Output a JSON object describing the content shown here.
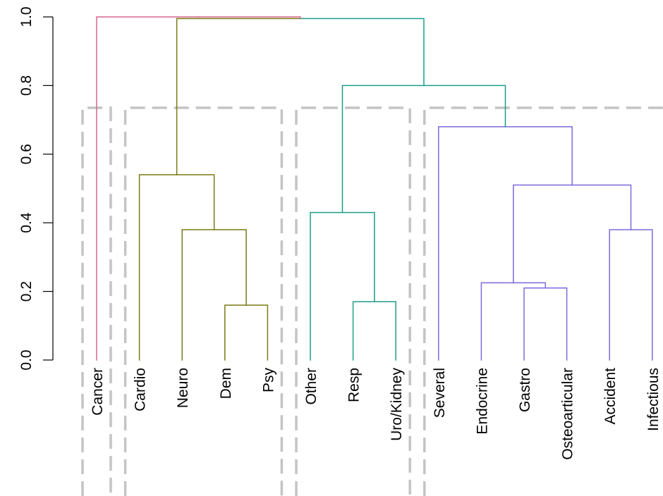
{
  "chart_data": {
    "type": "dendrogram",
    "title": "",
    "xlabel": "",
    "ylabel": "",
    "ylim": [
      0,
      1
    ],
    "yticks": [
      0.0,
      0.2,
      0.4,
      0.6,
      0.8,
      1.0
    ],
    "ytick_labels": [
      "0.0",
      "0.2",
      "0.4",
      "0.6",
      "0.8",
      "1.0"
    ],
    "leaves": [
      "Cancer",
      "Cardio",
      "Neuro",
      "Dem",
      "Psy",
      "Other",
      "Resp",
      "Uro/Kidney",
      "Several",
      "Endocrine",
      "Gastro",
      "Osteoarticular",
      "Accident",
      "Infectious"
    ],
    "merges": [
      {
        "a": "Dem",
        "b": "Psy",
        "height": 0.16,
        "cluster": 2
      },
      {
        "a": "Neuro",
        "b": 1,
        "height": 0.38,
        "cluster": 2
      },
      {
        "a": "Cardio",
        "b": 2,
        "height": 0.54,
        "cluster": 2
      },
      {
        "a": "Resp",
        "b": "Uro/Kidney",
        "height": 0.17,
        "cluster": 3
      },
      {
        "a": "Other",
        "b": 4,
        "height": 0.43,
        "cluster": 3
      },
      {
        "a": "Gastro",
        "b": "Osteoarticular",
        "height": 0.21,
        "cluster": 4
      },
      {
        "a": "Endocrine",
        "b": 6,
        "height": 0.225,
        "cluster": 4
      },
      {
        "a": "Accident",
        "b": "Infectious",
        "height": 0.38,
        "cluster": 4
      },
      {
        "a": 7,
        "b": 8,
        "height": 0.51,
        "cluster": 4
      },
      {
        "a": "Several",
        "b": 9,
        "height": 0.68,
        "cluster": 4
      },
      {
        "a": 5,
        "b": 10,
        "height": 0.8,
        "cluster": 3
      },
      {
        "a": 3,
        "b": 11,
        "height": 0.995,
        "cluster": 0
      },
      {
        "a": "Cancer",
        "b": 12,
        "height": 1.0,
        "cluster": 1
      }
    ],
    "cut_height": 0.735,
    "clusters": [
      {
        "id": 1,
        "members": [
          "Cancer"
        ],
        "color": "#D6648E"
      },
      {
        "id": 2,
        "members": [
          "Cardio",
          "Neuro",
          "Dem",
          "Psy"
        ],
        "color": "#7A7A14"
      },
      {
        "id": 3,
        "members": [
          "Other",
          "Resp",
          "Uro/Kidney"
        ],
        "color": "#1C9E87"
      },
      {
        "id": 4,
        "members": [
          "Several",
          "Endocrine",
          "Gastro",
          "Osteoarticular",
          "Accident",
          "Infectious"
        ],
        "color": "#7B6ADB"
      }
    ],
    "upper_link_color": "#000000",
    "box_color": "#C4C4C4",
    "grid": false,
    "legend": "none"
  }
}
